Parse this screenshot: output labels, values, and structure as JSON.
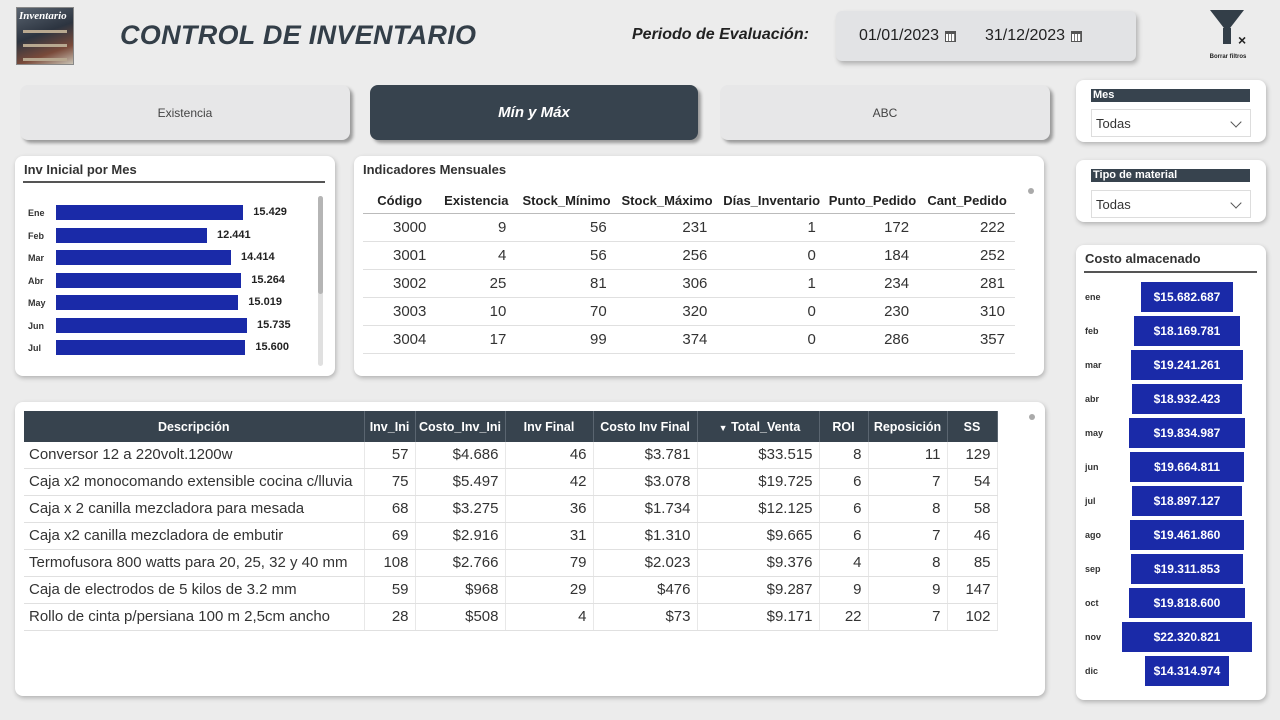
{
  "header": {
    "app_title": "CONTROL DE INVENTARIO",
    "logo_text": "Inventario",
    "period_label": "Periodo de Evaluación:",
    "date_start": "01/01/2023",
    "date_end": "31/12/2023",
    "clear_filters_label": "Borrar filtros"
  },
  "tabs": [
    {
      "label": "Existencia",
      "active": false
    },
    {
      "label": "Mín y Máx",
      "active": true
    },
    {
      "label": "ABC",
      "active": false
    }
  ],
  "inv_inicial": {
    "title": "Inv Inicial por Mes",
    "chart_data": {
      "type": "bar",
      "orientation": "horizontal",
      "categories": [
        "Ene",
        "Feb",
        "Mar",
        "Abr",
        "May",
        "Jun",
        "Jul"
      ],
      "values": [
        15429,
        12441,
        14414,
        15264,
        15019,
        15735,
        15600
      ],
      "value_labels": [
        "15.429",
        "12.441",
        "14.414",
        "15.264",
        "15.019",
        "15.735",
        "15.600"
      ],
      "color": "#1a2aa8"
    }
  },
  "indicadores": {
    "title": "Indicadores Mensuales",
    "columns": [
      "Código",
      "Existencia",
      "Stock_Mínimo",
      "Stock_Máximo",
      "Días_Inventario",
      "Punto_Pedido",
      "Cant_Pedido"
    ],
    "rows": [
      [
        "3000",
        "9",
        "56",
        "231",
        "1",
        "172",
        "222"
      ],
      [
        "3001",
        "4",
        "56",
        "256",
        "0",
        "184",
        "252"
      ],
      [
        "3002",
        "25",
        "81",
        "306",
        "1",
        "234",
        "281"
      ],
      [
        "3003",
        "10",
        "70",
        "320",
        "0",
        "230",
        "310"
      ],
      [
        "3004",
        "17",
        "99",
        "374",
        "0",
        "286",
        "357"
      ]
    ]
  },
  "detalle": {
    "columns": [
      "Descripción",
      "Inv_Ini",
      "Costo_Inv_Ini",
      "Inv Final",
      "Costo Inv Final",
      "Total_Venta",
      "ROI",
      "Reposición",
      "SS"
    ],
    "rows": [
      [
        "Conversor 12 a 220volt.1200w",
        "57",
        "$4.686",
        "46",
        "$3.781",
        "$33.515",
        "8",
        "11",
        "129"
      ],
      [
        "Caja x2 monocomando extensible cocina c/lluvia",
        "75",
        "$5.497",
        "42",
        "$3.078",
        "$19.725",
        "6",
        "7",
        "54"
      ],
      [
        "Caja x 2 canilla mezcladora para mesada",
        "68",
        "$3.275",
        "36",
        "$1.734",
        "$12.125",
        "6",
        "8",
        "58"
      ],
      [
        "Caja x2 canilla mezcladora de embutir",
        "69",
        "$2.916",
        "31",
        "$1.310",
        "$9.665",
        "6",
        "7",
        "46"
      ],
      [
        "Termofusora 800 watts para 20, 25, 32 y 40 mm",
        "108",
        "$2.766",
        "79",
        "$2.023",
        "$9.376",
        "4",
        "8",
        "85"
      ],
      [
        "Caja de electrodos de 5 kilos de 3.2 mm",
        "59",
        "$968",
        "29",
        "$476",
        "$9.287",
        "9",
        "9",
        "147"
      ],
      [
        "Rollo de cinta p/persiana 100 m 2,5cm ancho",
        "28",
        "$508",
        "4",
        "$73",
        "$9.171",
        "22",
        "7",
        "102"
      ]
    ]
  },
  "slicers": {
    "mes": {
      "label": "Mes",
      "value": "Todas"
    },
    "tipo": {
      "label": "Tipo de material",
      "value": "Todas"
    }
  },
  "costo": {
    "title": "Costo almacenado",
    "chart_data": {
      "type": "bar",
      "orientation": "funnel",
      "categories": [
        "ene",
        "feb",
        "mar",
        "abr",
        "may",
        "jun",
        "jul",
        "ago",
        "sep",
        "oct",
        "nov",
        "dic"
      ],
      "values": [
        15682687,
        18169781,
        19241261,
        18932423,
        19834987,
        19664811,
        18897127,
        19461860,
        19311853,
        19818600,
        22320821,
        14314974
      ],
      "value_labels": [
        "$15.682.687",
        "$18.169.781",
        "$19.241.261",
        "$18.932.423",
        "$19.834.987",
        "$19.664.811",
        "$18.897.127",
        "$19.461.860",
        "$19.311.853",
        "$19.818.600",
        "$22.320.821",
        "$14.314.974"
      ],
      "color": "#1a2aa8"
    }
  }
}
